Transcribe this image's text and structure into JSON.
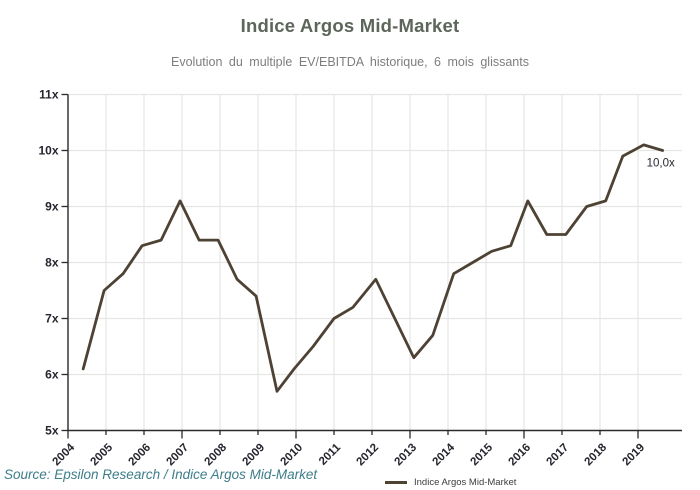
{
  "header": {
    "title": "Indice Argos Mid-Market",
    "subtitle": "Evolution du multiple EV/EBITDA historique, 6 mois glissants"
  },
  "chart_data": {
    "type": "line",
    "title": "Indice Argos Mid-Market",
    "subtitle": "Evolution du multiple EV/EBITDA historique, 6 mois glissants",
    "x": [
      2004.4,
      2004.95,
      2005.45,
      2005.95,
      2006.45,
      2006.95,
      2007.45,
      2007.95,
      2008.45,
      2008.95,
      2009.5,
      2009.95,
      2010.45,
      2011.0,
      2011.5,
      2012.1,
      2012.6,
      2013.1,
      2013.6,
      2014.15,
      2014.65,
      2015.15,
      2015.65,
      2016.1,
      2016.6,
      2017.1,
      2017.65,
      2018.15,
      2018.6,
      2019.15,
      2019.65
    ],
    "values": [
      6.1,
      7.5,
      7.8,
      8.3,
      8.4,
      9.1,
      8.4,
      8.4,
      7.7,
      7.4,
      5.7,
      6.1,
      6.5,
      7.0,
      7.2,
      7.7,
      7.0,
      6.3,
      6.7,
      7.8,
      8.0,
      8.2,
      8.3,
      9.1,
      8.5,
      8.5,
      9.0,
      9.1,
      9.9,
      10.1,
      10.0
    ],
    "series_name": "Indice Argos Mid-Market",
    "xticks": [
      2004,
      2005,
      2006,
      2007,
      2008,
      2009,
      2010,
      2011,
      2012,
      2013,
      2014,
      2015,
      2016,
      2017,
      2018,
      2019
    ],
    "ytick_labels": [
      "5x",
      "6x",
      "7x",
      "8x",
      "9x",
      "10x",
      "11x"
    ],
    "ylim": [
      5,
      11
    ],
    "grid": true,
    "legend": {
      "position": "bottom-center",
      "label": "Indice Argos Mid-Market"
    },
    "annotation": {
      "text": "10,0x",
      "x": 2019.65,
      "value": 10.0
    },
    "line_color": "#4e4235",
    "grid_color": "#e5e5e3",
    "axis_color": "#2b2b2b",
    "tick_label_color": "#25252e"
  },
  "footer": {
    "source": "Source: Epsilon Research / Indice Argos Mid-Market"
  }
}
